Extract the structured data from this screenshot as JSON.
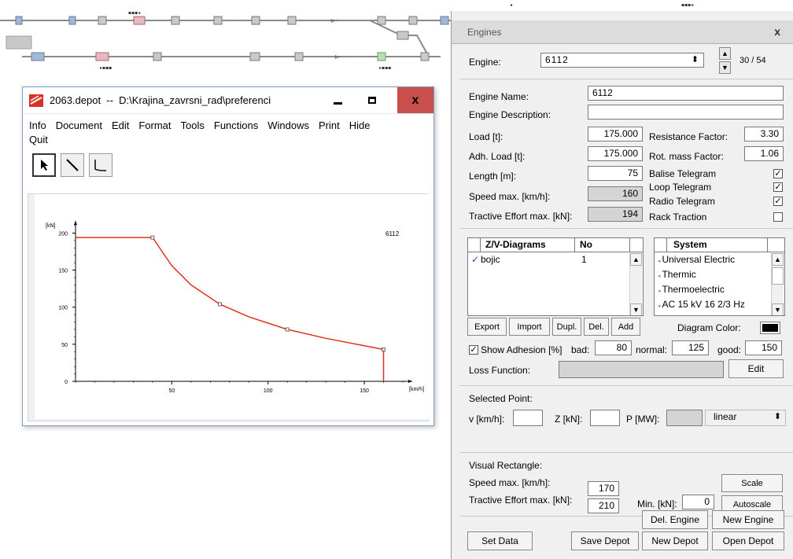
{
  "depot_window": {
    "title": "2063.depot  --  D:\\Krajina_zavrsni_rad\\preferenci",
    "menu": [
      "Info",
      "Document",
      "Edit",
      "Format",
      "Tools",
      "Functions",
      "Windows",
      "Print",
      "Hide",
      "Quit"
    ],
    "tools": [
      "pointer-tool",
      "line-tool",
      "curve-tool"
    ]
  },
  "chart_data": {
    "type": "line",
    "engine_label": "6112",
    "ylabel": "[kN]",
    "xlabel": "[km/h]",
    "xlim": [
      0,
      170
    ],
    "ylim": [
      0,
      210
    ],
    "x_ticks": [
      50,
      100,
      150
    ],
    "y_ticks": [
      0,
      50,
      100,
      150,
      200
    ],
    "series": [
      {
        "color": "#e0301e",
        "x": [
          0,
          40,
          50,
          60,
          75,
          90,
          110,
          130,
          150,
          160,
          160
        ],
        "y": [
          194,
          194,
          156,
          130,
          104,
          87,
          70,
          58,
          48,
          43,
          0
        ],
        "markers_x": [
          40,
          75,
          110,
          160
        ],
        "markers_y": [
          194,
          104,
          70,
          43
        ]
      }
    ]
  },
  "engines": {
    "title": "Engines",
    "close_label": "x",
    "engine_label": "Engine:",
    "engine_value": "6112",
    "counter": "30 / 54",
    "name_label": "Engine Name:",
    "name_value": "6112",
    "desc_label": "Engine Description:",
    "desc_value": "",
    "load_label": "Load [t]:",
    "load_value": "175.000",
    "adh_load_label": "Adh. Load [t]:",
    "adh_load_value": "175.000",
    "length_label": "Length [m]:",
    "length_value": "75",
    "speed_label": "Speed max. [km/h]:",
    "speed_value": "160",
    "te_label": "Tractive Effort max. [kN]:",
    "te_value": "194",
    "resistance_label": "Resistance Factor:",
    "resistance_value": "3.30",
    "rot_label": "Rot. mass Factor:",
    "rot_value": "1.06",
    "balise_label": "Balise Telegram",
    "balise_checked": "✓",
    "loop_label": "Loop Telegram",
    "loop_checked": "✓",
    "radio_label": "Radio Telegram",
    "radio_checked": "✓",
    "rack_label": "Rack Traction",
    "rack_checked": "",
    "zv_header": "Z/V-Diagrams",
    "no_header": "No",
    "zv_rows": [
      {
        "check": "✓",
        "name": "bojic",
        "no": "1"
      }
    ],
    "system_header": "System",
    "systems": [
      "Universal Electric",
      "Thermic",
      "Thermoelectric",
      "AC 15 kV 16 2/3 Hz"
    ],
    "btn_export": "Export",
    "btn_import": "Import",
    "btn_dupl": "Dupl.",
    "btn_del": "Del.",
    "btn_add": "Add",
    "diagram_color_label": "Diagram Color:",
    "diagram_color": "#000000",
    "show_adhesion_checked": "✓",
    "show_adhesion_label": "Show Adhesion [%]",
    "bad_label": "bad:",
    "bad_value": "80",
    "normal_label": "normal:",
    "normal_value": "125",
    "good_label": "good:",
    "good_value": "150",
    "loss_label": "Loss Function:",
    "loss_edit": "Edit",
    "selected_point_label": "Selected Point:",
    "v_label": "v [km/h]:",
    "v_value": "",
    "z_label": "Z [kN]:",
    "z_value": "",
    "p_label": "P [MW]:",
    "p_value": "",
    "interp_value": "linear",
    "visual_rect_label": "Visual Rectangle:",
    "vr_speed_label": "Speed max. [km/h]:",
    "vr_speed_value": "170",
    "vr_te_label": "Tractive Effort max. [kN]:",
    "vr_te_value": "210",
    "min_label": "Min. [kN]:",
    "min_value": "0",
    "btn_scale": "Scale",
    "btn_autoscale": "Autoscale",
    "btn_del_engine": "Del. Engine",
    "btn_new_engine": "New Engine",
    "btn_set_data": "Set Data",
    "btn_save_depot": "Save Depot",
    "btn_new_depot": "New Depot",
    "btn_open_depot": "Open Depot"
  }
}
